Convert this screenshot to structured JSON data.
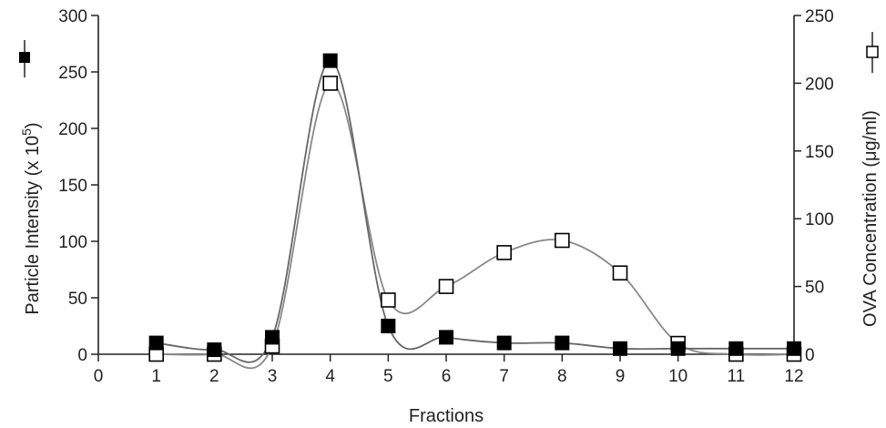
{
  "chart_data": {
    "type": "line",
    "xlabel": "Fractions",
    "ylabel_left": {
      "text": "Particle Intensity (x 10",
      "sup": "5",
      "suffix": ")"
    },
    "ylabel_right": "OVA Concentration (μg/ml)",
    "xlim": [
      0,
      12
    ],
    "ylim_left": [
      0,
      300
    ],
    "ylim_right": [
      0,
      250
    ],
    "x_ticks": [
      0,
      1,
      2,
      3,
      4,
      5,
      6,
      7,
      8,
      9,
      10,
      11,
      12
    ],
    "y_left_ticks": [
      0,
      50,
      100,
      150,
      200,
      250,
      300
    ],
    "y_right_ticks": [
      0,
      50,
      100,
      150,
      200,
      250
    ],
    "grid": false,
    "series": [
      {
        "axis": "left",
        "marker": "filled-square",
        "color": "#000000",
        "line_color": "#666666",
        "x": [
          1,
          2,
          3,
          4,
          5,
          6,
          7,
          8,
          9,
          10,
          11,
          12
        ],
        "values": [
          10,
          4,
          15,
          260,
          25,
          15,
          10,
          10,
          5,
          5,
          5,
          5
        ]
      },
      {
        "axis": "right",
        "marker": "open-square",
        "color": "#000000",
        "line_color": "#888888",
        "x": [
          1,
          2,
          3,
          4,
          5,
          6,
          7,
          8,
          9,
          10,
          11,
          12
        ],
        "values": [
          0,
          0,
          6,
          200,
          40,
          50,
          75,
          84,
          60,
          8,
          0,
          0
        ]
      }
    ]
  }
}
